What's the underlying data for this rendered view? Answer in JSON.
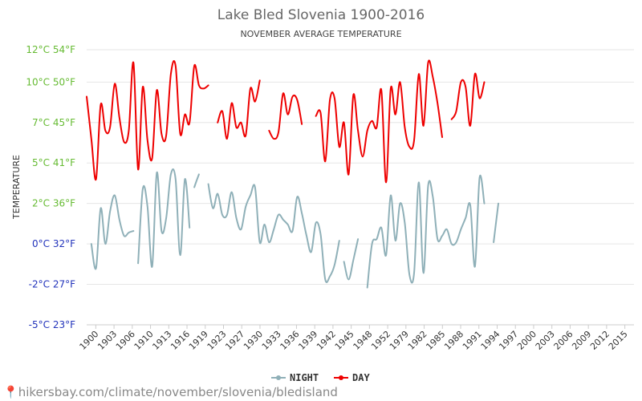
{
  "chart_data": {
    "type": "line",
    "title": "Lake Bled Slovenia 1900-2016",
    "subtitle": "NOVEMBER AVERAGE TEMPERATURE",
    "ylabel": "TEMPERATURE",
    "ylim": [
      -5,
      12
    ],
    "yticks": [
      {
        "value": 12,
        "label": "12°C 54°F",
        "color": "#66bb33"
      },
      {
        "value": 10,
        "label": "10°C 50°F",
        "color": "#66bb33"
      },
      {
        "value": 7.5,
        "label": "7°C 45°F",
        "color": "#66bb33"
      },
      {
        "value": 5,
        "label": "5°C 41°F",
        "color": "#66bb33"
      },
      {
        "value": 2.5,
        "label": "2°C 36°F",
        "color": "#66bb33"
      },
      {
        "value": 0,
        "label": "0°C 32°F",
        "color": "#2233bb"
      },
      {
        "value": -2.5,
        "label": "-2°C 27°F",
        "color": "#2233bb"
      },
      {
        "value": -5,
        "label": "-5°C 23°F",
        "color": "#2233bb"
      }
    ],
    "xlim": [
      1900,
      2017
    ],
    "xticks": [
      1900,
      1903,
      1906,
      1910,
      1913,
      1916,
      1919,
      1923,
      1927,
      1930,
      1933,
      1936,
      1939,
      1942,
      1945,
      1948,
      1952,
      1979,
      1982,
      1985,
      1988,
      1991,
      1994,
      1997,
      2000,
      2003,
      2006,
      2009,
      2012,
      2015
    ],
    "grid": true,
    "legend": "bottom-center",
    "series": [
      {
        "name": "NIGHT",
        "color": "#8fb0b8",
        "points": [
          [
            1901,
            0
          ],
          [
            1902,
            -1.5
          ],
          [
            1903,
            2.2
          ],
          [
            1904,
            0
          ],
          [
            1905,
            2
          ],
          [
            1906,
            3
          ],
          [
            1907,
            1.5
          ],
          [
            1908,
            0.5
          ],
          [
            1909,
            0.7
          ],
          [
            1910,
            0.8
          ],
          null,
          [
            1911,
            -1.2
          ],
          [
            1912,
            3.4
          ],
          [
            1913,
            2.3
          ],
          [
            1914,
            -1.4
          ],
          [
            1915,
            4.4
          ],
          [
            1916,
            0.8
          ],
          [
            1917,
            1.6
          ],
          [
            1918,
            4.3
          ],
          [
            1919,
            4
          ],
          [
            1920,
            -0.7
          ],
          [
            1921,
            4
          ],
          [
            1922,
            1
          ],
          null,
          [
            1923,
            3.5
          ],
          [
            1924,
            4.3
          ],
          null,
          [
            1926,
            3.7
          ],
          [
            1927,
            2.2
          ],
          [
            1928,
            3.1
          ],
          [
            1929,
            1.8
          ],
          [
            1930,
            1.8
          ],
          [
            1931,
            3.2
          ],
          [
            1932,
            1.6
          ],
          [
            1933,
            0.9
          ],
          [
            1934,
            2.3
          ],
          [
            1935,
            3
          ],
          [
            1936,
            3.5
          ],
          [
            1937,
            0.1
          ],
          [
            1938,
            1.2
          ],
          [
            1939,
            0.1
          ],
          [
            1940,
            0.9
          ],
          [
            1941,
            1.8
          ],
          [
            1942,
            1.5
          ],
          [
            1943,
            1.2
          ],
          [
            1944,
            0.8
          ],
          [
            1945,
            2.9
          ],
          [
            1946,
            1.9
          ],
          [
            1947,
            0.5
          ],
          [
            1948,
            -0.5
          ],
          [
            1949,
            1.3
          ],
          [
            1950,
            0.6
          ],
          [
            1951,
            -2.2
          ],
          [
            1952,
            -2
          ],
          [
            1953,
            -1.3
          ],
          [
            1954,
            0.2
          ],
          null,
          [
            1955,
            -1.1
          ],
          [
            1956,
            -2.2
          ],
          [
            1957,
            -1
          ],
          [
            1958,
            0.3
          ],
          null,
          [
            1960,
            -2.7
          ],
          [
            1961,
            0
          ],
          [
            1962,
            0.3
          ],
          [
            1963,
            1
          ],
          [
            1964,
            -0.7
          ],
          [
            1965,
            3
          ],
          [
            1966,
            0.2
          ],
          [
            1967,
            2.5
          ],
          [
            1968,
            1.3
          ],
          [
            1969,
            -1.9
          ],
          [
            1970,
            -1.8
          ],
          [
            1971,
            3.8
          ],
          [
            1972,
            -1.8
          ],
          [
            1973,
            3.6
          ],
          [
            1974,
            2.9
          ],
          [
            1975,
            0.3
          ],
          [
            1976,
            0.5
          ],
          [
            1977,
            0.9
          ],
          [
            1978,
            0
          ],
          [
            1979,
            0.1
          ],
          [
            1980,
            0.9
          ],
          [
            1981,
            1.6
          ],
          [
            1982,
            2.4
          ],
          [
            1983,
            -1.4
          ],
          [
            1984,
            4.1
          ],
          [
            1985,
            2.5
          ],
          null,
          [
            1987,
            0.1
          ],
          [
            1988,
            2.5
          ]
        ]
      },
      {
        "name": "DAY",
        "color": "#ee0000",
        "points": [
          [
            1900,
            9.1
          ],
          [
            1901,
            6.5
          ],
          [
            1902,
            4
          ],
          [
            1903,
            8.6
          ],
          [
            1904,
            7
          ],
          [
            1905,
            7.2
          ],
          [
            1906,
            9.9
          ],
          [
            1907,
            7.8
          ],
          [
            1908,
            6.3
          ],
          [
            1909,
            7
          ],
          [
            1910,
            11.2
          ],
          [
            1911,
            4.6
          ],
          [
            1912,
            9.7
          ],
          [
            1913,
            6.4
          ],
          [
            1914,
            5.3
          ],
          [
            1915,
            9.5
          ],
          [
            1916,
            6.8
          ],
          [
            1917,
            6.7
          ],
          [
            1918,
            10.5
          ],
          [
            1919,
            11
          ],
          [
            1920,
            6.8
          ],
          [
            1921,
            8
          ],
          [
            1922,
            7.5
          ],
          [
            1923,
            11
          ],
          [
            1924,
            9.8
          ],
          [
            1925,
            9.6
          ],
          [
            1926,
            9.8
          ],
          null,
          [
            1928,
            7.5
          ],
          [
            1929,
            8.2
          ],
          [
            1930,
            6.5
          ],
          [
            1931,
            8.7
          ],
          [
            1932,
            7.2
          ],
          [
            1933,
            7.5
          ],
          [
            1934,
            6.7
          ],
          [
            1935,
            9.6
          ],
          [
            1936,
            8.8
          ],
          [
            1937,
            10.1
          ],
          null,
          [
            1939,
            7
          ],
          [
            1940,
            6.5
          ],
          [
            1941,
            6.9
          ],
          [
            1942,
            9.3
          ],
          [
            1943,
            8
          ],
          [
            1944,
            9.1
          ],
          [
            1945,
            8.9
          ],
          [
            1946,
            7.4
          ],
          null,
          [
            1949,
            7.9
          ],
          [
            1950,
            8.1
          ],
          [
            1951,
            5.1
          ],
          [
            1952,
            8.9
          ],
          [
            1953,
            9
          ],
          [
            1954,
            6
          ],
          [
            1955,
            7.5
          ],
          [
            1956,
            4.3
          ],
          [
            1957,
            9.2
          ],
          [
            1958,
            7
          ],
          [
            1959,
            5.4
          ],
          [
            1960,
            7
          ],
          [
            1961,
            7.6
          ],
          [
            1962,
            7.2
          ],
          [
            1963,
            9.5
          ],
          [
            1964,
            3.8
          ],
          [
            1965,
            9.6
          ],
          [
            1966,
            8
          ],
          [
            1967,
            10
          ],
          [
            1968,
            7.2
          ],
          [
            1969,
            6
          ],
          [
            1970,
            6.4
          ],
          [
            1971,
            10.5
          ],
          [
            1972,
            7.3
          ],
          [
            1973,
            11.2
          ],
          [
            1974,
            10.3
          ],
          [
            1975,
            8.7
          ],
          [
            1976,
            6.6
          ],
          null,
          [
            1978,
            7.7
          ],
          [
            1979,
            8.2
          ],
          [
            1980,
            10
          ],
          [
            1981,
            9.7
          ],
          [
            1982,
            7.3
          ],
          [
            1983,
            10.5
          ],
          [
            1984,
            9
          ],
          [
            1985,
            10
          ]
        ]
      }
    ]
  },
  "legend": {
    "night_label": "NIGHT",
    "day_label": "DAY"
  },
  "watermark": "hikersbay.com/climate/november/slovenia/bledisland",
  "icons": {
    "watermark_icon": "location-pin-icon"
  }
}
